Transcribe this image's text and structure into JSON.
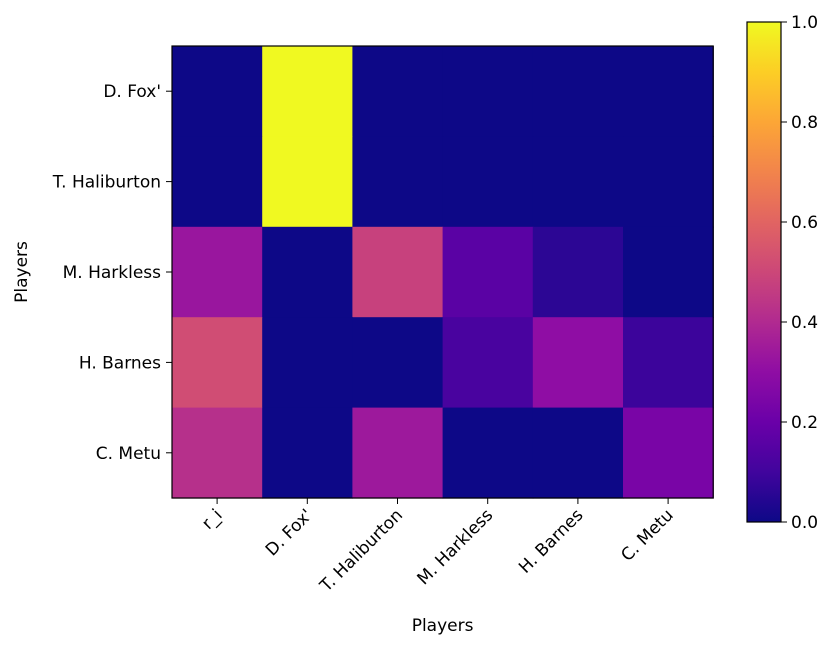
{
  "chart_data": {
    "type": "heatmap",
    "title": "",
    "xlabel": "Players",
    "ylabel": "Players",
    "x_categories": [
      "r_i",
      "D. Fox'",
      "T. Haliburton",
      "M. Harkless",
      "H. Barnes",
      "C. Metu"
    ],
    "y_categories": [
      "D. Fox'",
      "T. Haliburton",
      "M. Harkless",
      "H. Barnes",
      "C. Metu"
    ],
    "values": [
      [
        0.0,
        1.0,
        0.0,
        0.0,
        0.0,
        0.0
      ],
      [
        0.0,
        1.0,
        0.0,
        0.0,
        0.0,
        0.0
      ],
      [
        0.33,
        0.0,
        0.48,
        0.16,
        0.06,
        0.0
      ],
      [
        0.52,
        0.0,
        0.0,
        0.12,
        0.3,
        0.09
      ],
      [
        0.42,
        0.0,
        0.34,
        0.0,
        0.0,
        0.24
      ]
    ],
    "colormap": "plasma",
    "vmin": 0.0,
    "vmax": 1.0,
    "colorbar_ticks": [
      "0.0",
      "0.2",
      "0.4",
      "0.6",
      "0.8",
      "1.0"
    ],
    "colorbar_tick_values": [
      0.0,
      0.2,
      0.4,
      0.6,
      0.8,
      1.0
    ]
  }
}
